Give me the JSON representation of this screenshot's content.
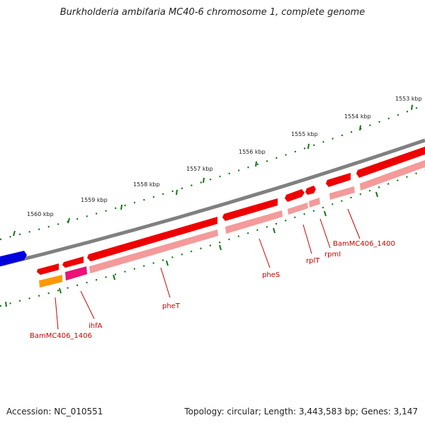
{
  "title": "Burkholderia ambifaria MC40-6 chromosome 1, complete genome",
  "footer": {
    "accession": "Accession: NC_010551",
    "summary": "Topology: circular; Length: 3,443,583 bp; Genes: 3,147"
  },
  "ticks": [
    {
      "label": "1553 kbp"
    },
    {
      "label": "1554 kbp"
    },
    {
      "label": "1555 kbp"
    },
    {
      "label": "1556 kbp"
    },
    {
      "label": "1557 kbp"
    },
    {
      "label": "1558 kbp"
    },
    {
      "label": "1559 kbp"
    },
    {
      "label": "1560 kbp"
    }
  ],
  "genes": [
    {
      "label": "BamMC406_1400"
    },
    {
      "label": "rpmI"
    },
    {
      "label": "rplT"
    },
    {
      "label": "pheS"
    },
    {
      "label": "pheT"
    },
    {
      "label": "ihfA"
    },
    {
      "label": "BamMC406_1406"
    }
  ],
  "colors": {
    "backbone": "#808080",
    "gene_forward": "#ee0000",
    "cds_pink": "#f49a9a",
    "left_gene": "#0000dd",
    "orange_feature": "#ff9900",
    "magenta_feature": "#ee1177",
    "tick_green": "#117711",
    "label_red": "#cc0000"
  }
}
